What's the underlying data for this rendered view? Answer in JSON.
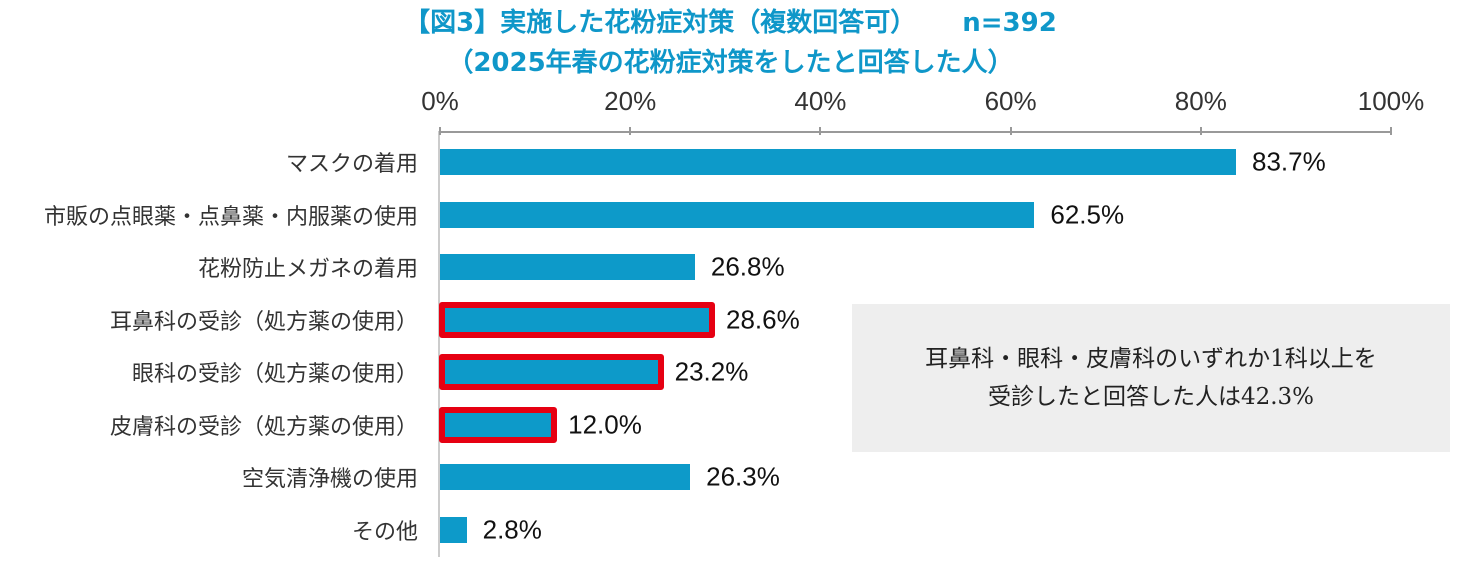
{
  "title_line1": "【図3】実施した花粉症対策（複数回答可）",
  "sample_size": "n=392",
  "title_line2": "（2025年春の花粉症対策をしたと回答した人）",
  "chart_data": {
    "type": "bar",
    "orientation": "horizontal",
    "title": "【図3】実施した花粉症対策（複数回答可）　n=392　（2025年春の花粉症対策をしたと回答した人）",
    "xlim": [
      0,
      100
    ],
    "x_tick_labels": [
      "0%",
      "20%",
      "40%",
      "60%",
      "80%",
      "100%"
    ],
    "x_ticks": [
      0,
      20,
      40,
      60,
      80,
      100
    ],
    "categories": [
      "マスクの着用",
      "市販の点眼薬・点鼻薬・内服薬の使用",
      "花粉防止メガネの着用",
      "耳鼻科の受診（処方薬の使用）",
      "眼科の受診（処方薬の使用）",
      "皮膚科の受診（処方薬の使用）",
      "空気清浄機の使用",
      "その他"
    ],
    "values": [
      83.7,
      62.5,
      26.8,
      28.6,
      23.2,
      12.0,
      26.3,
      2.8
    ],
    "value_labels": [
      "83.7%",
      "62.5%",
      "26.8%",
      "28.6%",
      "23.2%",
      "12.0%",
      "26.3%",
      "2.8%"
    ],
    "highlighted": [
      false,
      false,
      false,
      true,
      true,
      true,
      false,
      false
    ],
    "bar_color": "#0d9ac9",
    "highlight_color": "#e60012",
    "axis_position": "top",
    "grid": false,
    "annotation": [
      "耳鼻科・眼科・皮膚科のいずれか1科以上を",
      "受診したと回答した人は42.3%"
    ]
  }
}
